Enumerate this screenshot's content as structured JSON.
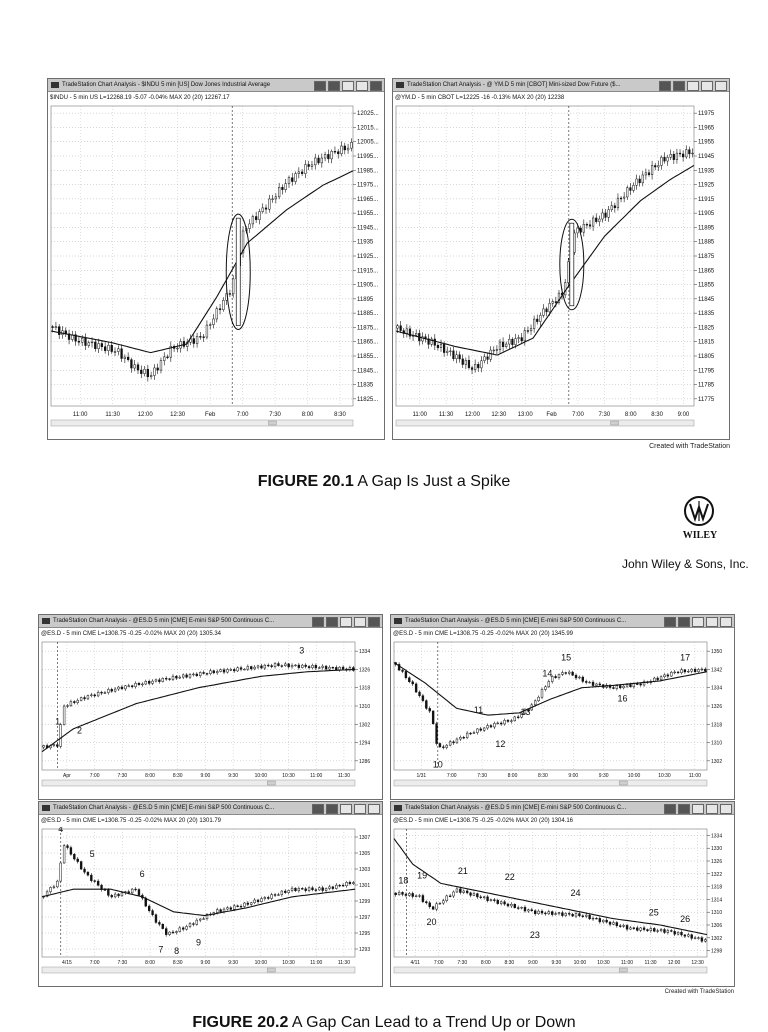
{
  "figure1": {
    "caption_label": "FIGURE 20.1",
    "caption_text": " A Gap Is Just a Spike",
    "credit": "Created with TradeStation",
    "left": {
      "title": "TradeStation Chart Analysis - $INDU 5 min [US] Dow Jones Industrial Average",
      "info": "$INDU - 5 min US  L=12268.19  -5.07  -0.04%  MAX 20 (20)  12267.17"
    },
    "right": {
      "title": "TradeStation Chart Analysis - @ YM.D 5 min [CBOT] Mini-sized Dow Future ($...",
      "info": "@YM.D - 5 min CBOT  L=12225  -16  -0.13%  MAX 20 (20)  12238"
    }
  },
  "publisher": {
    "logo_text": "WILEY",
    "name": "John Wiley & Sons, Inc."
  },
  "figure2": {
    "caption_label": "FIGURE 20.2",
    "caption_text": " A Gap Can Lead to a Trend Up or Down",
    "credit": "Created with TradeStation",
    "title": "TradeStation Chart Analysis - @ES.D 5 min [CME] E-mini S&P 500 Continuous C...",
    "tl_info": "@ES.D - 5 min CME  L=1308.75  -0.25  -0.02%  MAX 20 (20)  1305.34",
    "tr_info": "@ES.D - 5 min CME  L=1308.75  -0.25  -0.02%  MAX 20 (20)  1345.99",
    "bl_info": "@ES.D - 5 min CME  L=1308.75  -0.25  -0.02%  MAX 20 (20)  1301.79",
    "br_info": "@ES.D - 5 min CME  L=1308.75  -0.25  -0.02%  MAX 20 (20)  1304.16"
  },
  "chart_data": [
    {
      "type": "candlestick",
      "panel": "fig1-left",
      "symbol": "$INDU",
      "interval": "5 min",
      "x_tick_labels": [
        "11:00",
        "11:30",
        "12:00",
        "12:30",
        "Feb",
        "7:00",
        "7:30",
        "8:00",
        "8:30"
      ],
      "y_tick_labels": [
        "12025...",
        "12015...",
        "12005...",
        "11995...",
        "11985...",
        "11975...",
        "11965...",
        "11955...",
        "11945...",
        "11935",
        "11925...",
        "11915...",
        "11905...",
        "11895",
        "11885...",
        "11875...",
        "11865...",
        "11855...",
        "11845...",
        "11835",
        "11825..."
      ],
      "ylim": [
        11822,
        12030
      ],
      "grid": true,
      "path": [
        [
          0,
          11877
        ],
        [
          0.08,
          11868
        ],
        [
          0.22,
          11860
        ],
        [
          0.28,
          11848
        ],
        [
          0.33,
          11843
        ],
        [
          0.4,
          11862
        ],
        [
          0.5,
          11870
        ],
        [
          0.6,
          11905
        ],
        [
          0.64,
          11945
        ],
        [
          0.7,
          11958
        ],
        [
          0.78,
          11977
        ],
        [
          0.86,
          11990
        ],
        [
          0.94,
          11998
        ],
        [
          1,
          12003
        ]
      ],
      "ma_path": [
        [
          0,
          11874
        ],
        [
          0.2,
          11866
        ],
        [
          0.33,
          11859
        ],
        [
          0.45,
          11865
        ],
        [
          0.55,
          11898
        ],
        [
          0.65,
          11935
        ],
        [
          0.78,
          11958
        ],
        [
          0.9,
          11975
        ],
        [
          1,
          11985
        ]
      ],
      "annotation": "ellipse around gap bar at Feb open"
    },
    {
      "type": "candlestick",
      "panel": "fig1-right",
      "symbol": "@YM.D",
      "interval": "5 min",
      "x_tick_labels": [
        "11:00",
        "11:30",
        "12:00",
        "12:30",
        "13:00",
        "Feb",
        "7:00",
        "7:30",
        "8:00",
        "8:30",
        "9:00"
      ],
      "y_tick_labels": [
        "11975",
        "11965",
        "11955",
        "11945",
        "11935",
        "11925",
        "11915",
        "11905",
        "11895",
        "11885",
        "11875",
        "11865",
        "11855",
        "11845",
        "11835",
        "11825",
        "11815",
        "11805",
        "11795",
        "11785",
        "11775"
      ],
      "ylim": [
        11770,
        11982
      ],
      "grid": true,
      "path": [
        [
          0,
          11825
        ],
        [
          0.12,
          11815
        ],
        [
          0.2,
          11805
        ],
        [
          0.26,
          11796
        ],
        [
          0.34,
          11812
        ],
        [
          0.42,
          11818
        ],
        [
          0.5,
          11838
        ],
        [
          0.56,
          11850
        ],
        [
          0.6,
          11893
        ],
        [
          0.7,
          11905
        ],
        [
          0.8,
          11927
        ],
        [
          0.9,
          11945
        ],
        [
          1,
          11950
        ]
      ],
      "ma_path": [
        [
          0,
          11823
        ],
        [
          0.2,
          11812
        ],
        [
          0.34,
          11806
        ],
        [
          0.46,
          11818
        ],
        [
          0.58,
          11855
        ],
        [
          0.7,
          11890
        ],
        [
          0.82,
          11915
        ],
        [
          0.92,
          11930
        ],
        [
          1,
          11940
        ]
      ],
      "annotation": "ellipse around gap bar at Feb open"
    },
    {
      "type": "candlestick",
      "panel": "fig2-top-left",
      "symbol": "@ES.D",
      "x_tick_labels": [
        "Apr",
        "7:00",
        "7:30",
        "8:00",
        "8:30",
        "9:00",
        "9:30",
        "10:00",
        "10:30",
        "11:00",
        "11:30"
      ],
      "y_tick_labels": [
        "1334",
        "1326",
        "1318",
        "1310",
        "1302",
        "1294",
        "1286"
      ],
      "ylim": [
        1282,
        1338
      ],
      "labels": [
        "1",
        "2",
        "3"
      ],
      "path": [
        [
          0,
          1292
        ],
        [
          0.05,
          1293
        ],
        [
          0.07,
          1310
        ],
        [
          0.14,
          1314
        ],
        [
          0.25,
          1318
        ],
        [
          0.4,
          1322
        ],
        [
          0.55,
          1325
        ],
        [
          0.75,
          1328
        ],
        [
          0.88,
          1327
        ],
        [
          1,
          1326
        ]
      ],
      "ma_path": [
        [
          0,
          1290
        ],
        [
          0.1,
          1300
        ],
        [
          0.3,
          1311
        ],
        [
          0.5,
          1318
        ],
        [
          0.7,
          1323
        ],
        [
          0.85,
          1325
        ],
        [
          1,
          1326
        ]
      ]
    },
    {
      "type": "candlestick",
      "panel": "fig2-top-right",
      "symbol": "@ES.D",
      "x_tick_labels": [
        "1/31",
        "7:00",
        "7:30",
        "8:00",
        "8:30",
        "9:00",
        "9:30",
        "10:00",
        "10:30",
        "11:00"
      ],
      "y_tick_labels": [
        "1350",
        "1342",
        "1334",
        "1326",
        "1318",
        "1310",
        "1302"
      ],
      "ylim": [
        1298,
        1354
      ],
      "labels": [
        "10",
        "11",
        "12",
        "13",
        "14",
        "15",
        "16",
        "17"
      ],
      "path": [
        [
          0,
          1345
        ],
        [
          0.06,
          1335
        ],
        [
          0.12,
          1322
        ],
        [
          0.14,
          1307
        ],
        [
          0.24,
          1314
        ],
        [
          0.32,
          1318
        ],
        [
          0.38,
          1320
        ],
        [
          0.44,
          1326
        ],
        [
          0.5,
          1338
        ],
        [
          0.55,
          1341
        ],
        [
          0.62,
          1336
        ],
        [
          0.7,
          1334
        ],
        [
          0.8,
          1336
        ],
        [
          0.9,
          1341
        ],
        [
          1,
          1342
        ]
      ],
      "ma_path": [
        [
          0,
          1345
        ],
        [
          0.1,
          1336
        ],
        [
          0.2,
          1325
        ],
        [
          0.3,
          1322
        ],
        [
          0.4,
          1323
        ],
        [
          0.5,
          1329
        ],
        [
          0.6,
          1334
        ],
        [
          0.7,
          1335
        ],
        [
          0.85,
          1337
        ],
        [
          1,
          1341
        ]
      ]
    },
    {
      "type": "candlestick",
      "panel": "fig2-bottom-left",
      "symbol": "@ES.D",
      "x_tick_labels": [
        "4/15",
        "7:00",
        "7:30",
        "8:00",
        "8:30",
        "9:00",
        "9:30",
        "10:00",
        "10:30",
        "11:00",
        "11:30"
      ],
      "y_tick_labels": [
        "1307",
        "1305",
        "1303",
        "1301",
        "1299",
        "1297",
        "1295",
        "1293"
      ],
      "ylim": [
        1291,
        1308
      ],
      "labels": [
        "4",
        "5",
        "6",
        "7",
        "8",
        "9"
      ],
      "path": [
        [
          0,
          1299
        ],
        [
          0.05,
          1301
        ],
        [
          0.07,
          1306
        ],
        [
          0.14,
          1302
        ],
        [
          0.22,
          1299
        ],
        [
          0.3,
          1300
        ],
        [
          0.36,
          1296
        ],
        [
          0.4,
          1294
        ],
        [
          0.46,
          1295
        ],
        [
          0.55,
          1297
        ],
        [
          0.65,
          1298
        ],
        [
          0.8,
          1300
        ],
        [
          0.9,
          1300
        ],
        [
          1,
          1301
        ]
      ],
      "ma_path": [
        [
          0,
          1299
        ],
        [
          0.1,
          1300
        ],
        [
          0.22,
          1300
        ],
        [
          0.32,
          1299
        ],
        [
          0.42,
          1297
        ],
        [
          0.52,
          1296.5
        ],
        [
          0.65,
          1297.5
        ],
        [
          0.8,
          1299
        ],
        [
          1,
          1300
        ]
      ]
    },
    {
      "type": "candlestick",
      "panel": "fig2-bottom-right",
      "symbol": "@ES.D",
      "x_tick_labels": [
        "4/11",
        "7:00",
        "7:30",
        "8:00",
        "8:30",
        "9:00",
        "9:30",
        "10:00",
        "10:30",
        "11:00",
        "11:30",
        "12:00",
        "12:30"
      ],
      "y_tick_labels": [
        "1334",
        "1330",
        "1326",
        "1322",
        "1318",
        "1314",
        "1310",
        "1306",
        "1302",
        "1298"
      ],
      "ylim": [
        1296,
        1336
      ],
      "labels": [
        "18",
        "19",
        "20",
        "21",
        "22",
        "23",
        "24",
        "25",
        "26"
      ],
      "path": [
        [
          0,
          1316
        ],
        [
          0.08,
          1315
        ],
        [
          0.12,
          1311
        ],
        [
          0.2,
          1317
        ],
        [
          0.3,
          1314
        ],
        [
          0.45,
          1310
        ],
        [
          0.6,
          1309
        ],
        [
          0.75,
          1305
        ],
        [
          0.88,
          1304
        ],
        [
          1,
          1301
        ]
      ],
      "ma_path": [
        [
          0,
          1333
        ],
        [
          0.06,
          1325
        ],
        [
          0.15,
          1319
        ],
        [
          0.25,
          1317
        ],
        [
          0.4,
          1314
        ],
        [
          0.55,
          1311
        ],
        [
          0.7,
          1308
        ],
        [
          0.85,
          1306
        ],
        [
          1,
          1303
        ]
      ]
    }
  ]
}
